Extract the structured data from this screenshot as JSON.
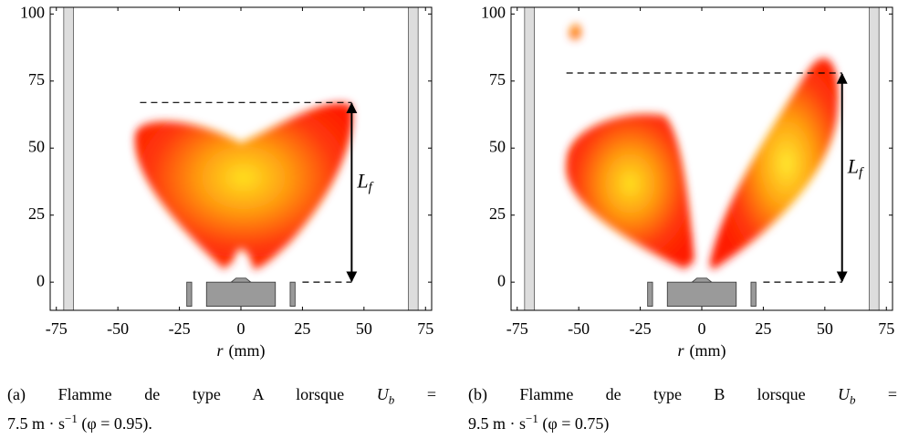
{
  "chart_data": [
    {
      "type": "image",
      "xlabel": {
        "var": "r",
        "unit": "(mm)"
      },
      "xlim": [
        -77.5,
        77.5
      ],
      "ylim": [
        -10.5,
        102.5
      ],
      "xticks": [
        -75,
        -50,
        -25,
        0,
        25,
        50,
        75
      ],
      "yticks": [
        0,
        25,
        50,
        75,
        100
      ],
      "flame_length": {
        "label": "L",
        "sub": "f",
        "bottom": 0,
        "top": 67
      },
      "caption": {
        "label": "(a) Flamme de type A lorsque",
        "var": "U",
        "sub": "b",
        "eq": "=",
        "value": "7.5 m · s",
        "sup": "−1",
        "end": "(φ = 0.95)."
      }
    },
    {
      "type": "image",
      "xlabel": {
        "var": "r",
        "unit": "(mm)"
      },
      "xlim": [
        -77.5,
        77.5
      ],
      "ylim": [
        -10.5,
        102.5
      ],
      "xticks": [
        -75,
        -50,
        -25,
        0,
        25,
        50,
        75
      ],
      "yticks": [
        0,
        25,
        50,
        75,
        100
      ],
      "flame_length": {
        "label": "L",
        "sub": "f",
        "bottom": 0,
        "top": 78
      },
      "caption": {
        "label": "(b) Flamme de type B lorsque",
        "var": "U",
        "sub": "b",
        "eq": "=",
        "value": "9.5 m · s",
        "sup": "−1",
        "end": "(φ = 0.75)"
      }
    }
  ]
}
